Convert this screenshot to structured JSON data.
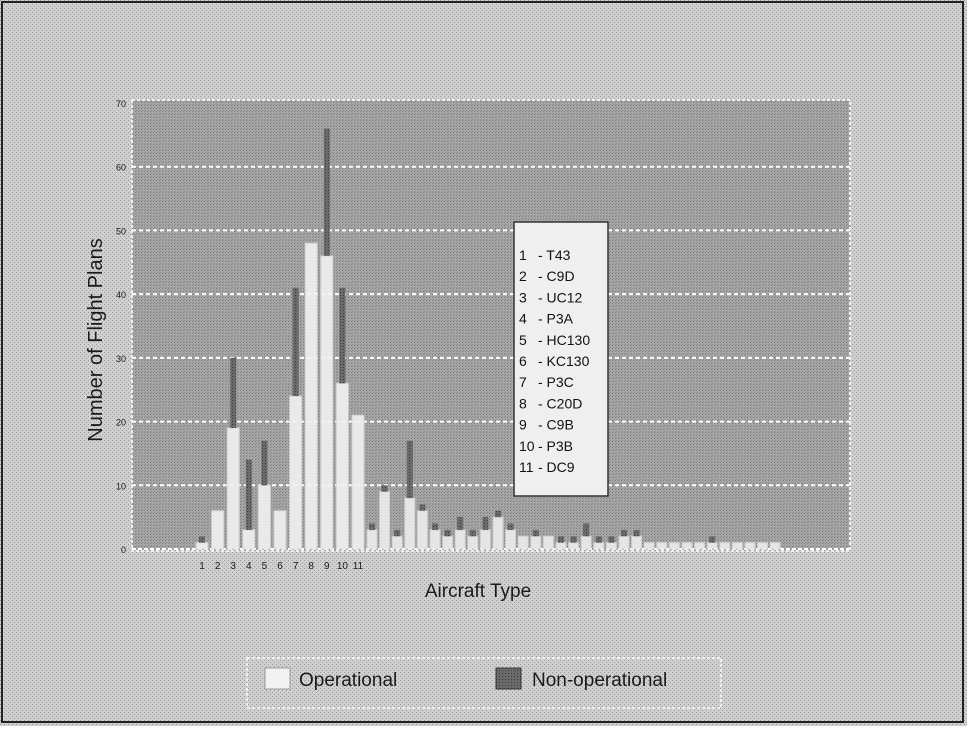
{
  "chart_data": {
    "type": "bar",
    "xlabel": "Aircraft Type",
    "ylabel": "Number of Flight Plans",
    "ylim": [
      0,
      70
    ],
    "yticks": [
      0,
      10,
      20,
      30,
      40,
      50,
      60,
      70
    ],
    "grid": true,
    "categories": [
      "1",
      "2",
      "3",
      "4",
      "5",
      "6",
      "7",
      "8",
      "9",
      "10",
      "11"
    ],
    "series": [
      {
        "name": "Operational",
        "values": [
          1,
          6,
          19,
          3,
          10,
          6,
          24,
          48,
          46,
          26,
          21
        ]
      },
      {
        "name": "Non-operational",
        "values": [
          2,
          null,
          30,
          14,
          17,
          null,
          41,
          48,
          66,
          41,
          null
        ]
      }
    ],
    "extra_bars": [
      {
        "x": 12,
        "op": 3,
        "nonop": 4
      },
      {
        "x": 13,
        "op": 9,
        "nonop": 10
      },
      {
        "x": 14,
        "op": 2,
        "nonop": 3
      },
      {
        "x": 15,
        "op": 8,
        "nonop": 17
      },
      {
        "x": 16,
        "op": 6,
        "nonop": 7
      },
      {
        "x": 17,
        "op": 3,
        "nonop": 4
      },
      {
        "x": 18,
        "op": 2,
        "nonop": 3
      },
      {
        "x": 19,
        "op": 3,
        "nonop": 5
      },
      {
        "x": 20,
        "op": 2,
        "nonop": 3
      },
      {
        "x": 21,
        "op": 3,
        "nonop": 5
      },
      {
        "x": 22,
        "op": 5,
        "nonop": 6
      },
      {
        "x": 23,
        "op": 3,
        "nonop": 4
      },
      {
        "x": 24,
        "op": 2,
        "nonop": 2
      },
      {
        "x": 25,
        "op": 2,
        "nonop": 3
      },
      {
        "x": 26,
        "op": 2,
        "nonop": 2
      },
      {
        "x": 27,
        "op": 1,
        "nonop": 2
      },
      {
        "x": 28,
        "op": 1,
        "nonop": 2
      },
      {
        "x": 29,
        "op": 2,
        "nonop": 4
      },
      {
        "x": 30,
        "op": 1,
        "nonop": 2
      },
      {
        "x": 31,
        "op": 1,
        "nonop": 2
      },
      {
        "x": 32,
        "op": 2,
        "nonop": 3
      },
      {
        "x": 33,
        "op": 2,
        "nonop": 3
      },
      {
        "x": 34,
        "op": 1,
        "nonop": 1
      },
      {
        "x": 35,
        "op": 1,
        "nonop": 1
      },
      {
        "x": 36,
        "op": 1,
        "nonop": 1
      },
      {
        "x": 37,
        "op": 1,
        "nonop": 1
      },
      {
        "x": 38,
        "op": 1,
        "nonop": 1
      },
      {
        "x": 39,
        "op": 1,
        "nonop": 2
      },
      {
        "x": 40,
        "op": 1,
        "nonop": 1
      },
      {
        "x": 41,
        "op": 1,
        "nonop": 1
      },
      {
        "x": 42,
        "op": 1,
        "nonop": 1
      },
      {
        "x": 43,
        "op": 1,
        "nonop": 1
      },
      {
        "x": 44,
        "op": 1,
        "nonop": 1
      }
    ],
    "key_box": [
      {
        "num": "1",
        "name": "- T43"
      },
      {
        "num": "2",
        "name": "- C9D"
      },
      {
        "num": "3",
        "name": "- UC12"
      },
      {
        "num": "4",
        "name": "- P3A"
      },
      {
        "num": "5",
        "name": "- HC130"
      },
      {
        "num": "6",
        "name": "- KC130"
      },
      {
        "num": "7",
        "name": "- P3C"
      },
      {
        "num": "8",
        "name": "- C20D"
      },
      {
        "num": "9",
        "name": "- C9B"
      },
      {
        "num": "10",
        "name": "- P3B"
      },
      {
        "num": "11",
        "name": "- DC9"
      }
    ],
    "legend": {
      "position": "bottom-center",
      "items": [
        "Operational",
        "Non-operational"
      ]
    },
    "colors": {
      "background": "#c8c8c8",
      "plot": "#a9a9a9",
      "operational": "#f2f2f2",
      "non_operational": "#5a5a5a",
      "gridline": "#ffffff"
    }
  }
}
